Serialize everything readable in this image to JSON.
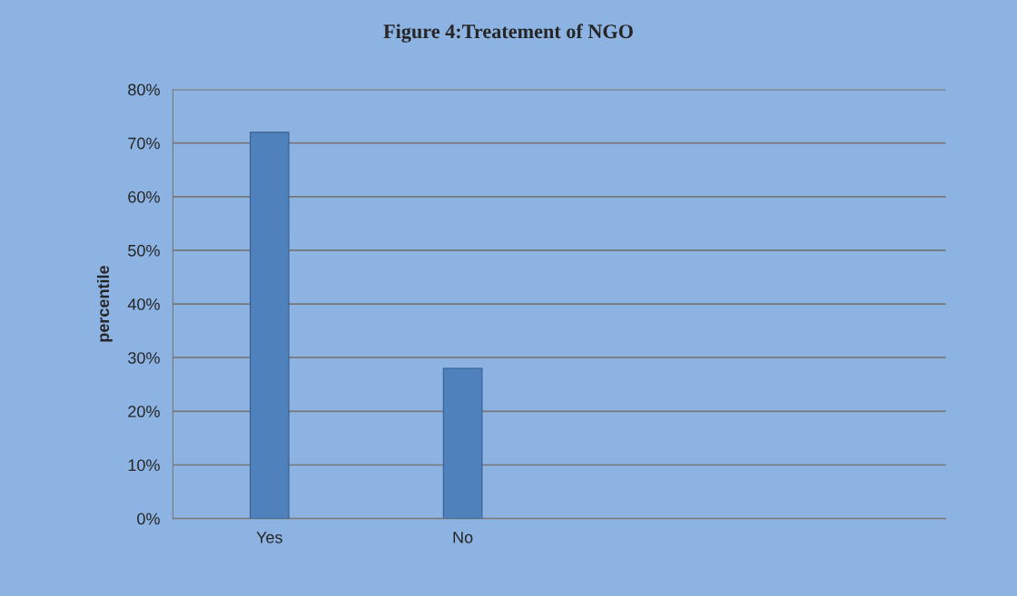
{
  "chart_data": {
    "type": "bar",
    "title": "Figure 4:Treatement of NGO",
    "ylabel": "percentile",
    "categories": [
      "Yes",
      "No",
      null,
      null
    ],
    "values": [
      72,
      28,
      null,
      null
    ],
    "color": "#4f81bd",
    "ylim": [
      0,
      80
    ],
    "yticks": [
      {
        "value": 0,
        "label": "0%"
      },
      {
        "value": 10,
        "label": "10%"
      },
      {
        "value": 20,
        "label": "20%"
      },
      {
        "value": 30,
        "label": "30%"
      },
      {
        "value": 40,
        "label": "40%"
      },
      {
        "value": 50,
        "label": "50%"
      },
      {
        "value": 60,
        "label": "60%"
      },
      {
        "value": 70,
        "label": "70%"
      },
      {
        "value": 80,
        "label": "80%"
      }
    ],
    "grid": "y",
    "legend": false
  }
}
